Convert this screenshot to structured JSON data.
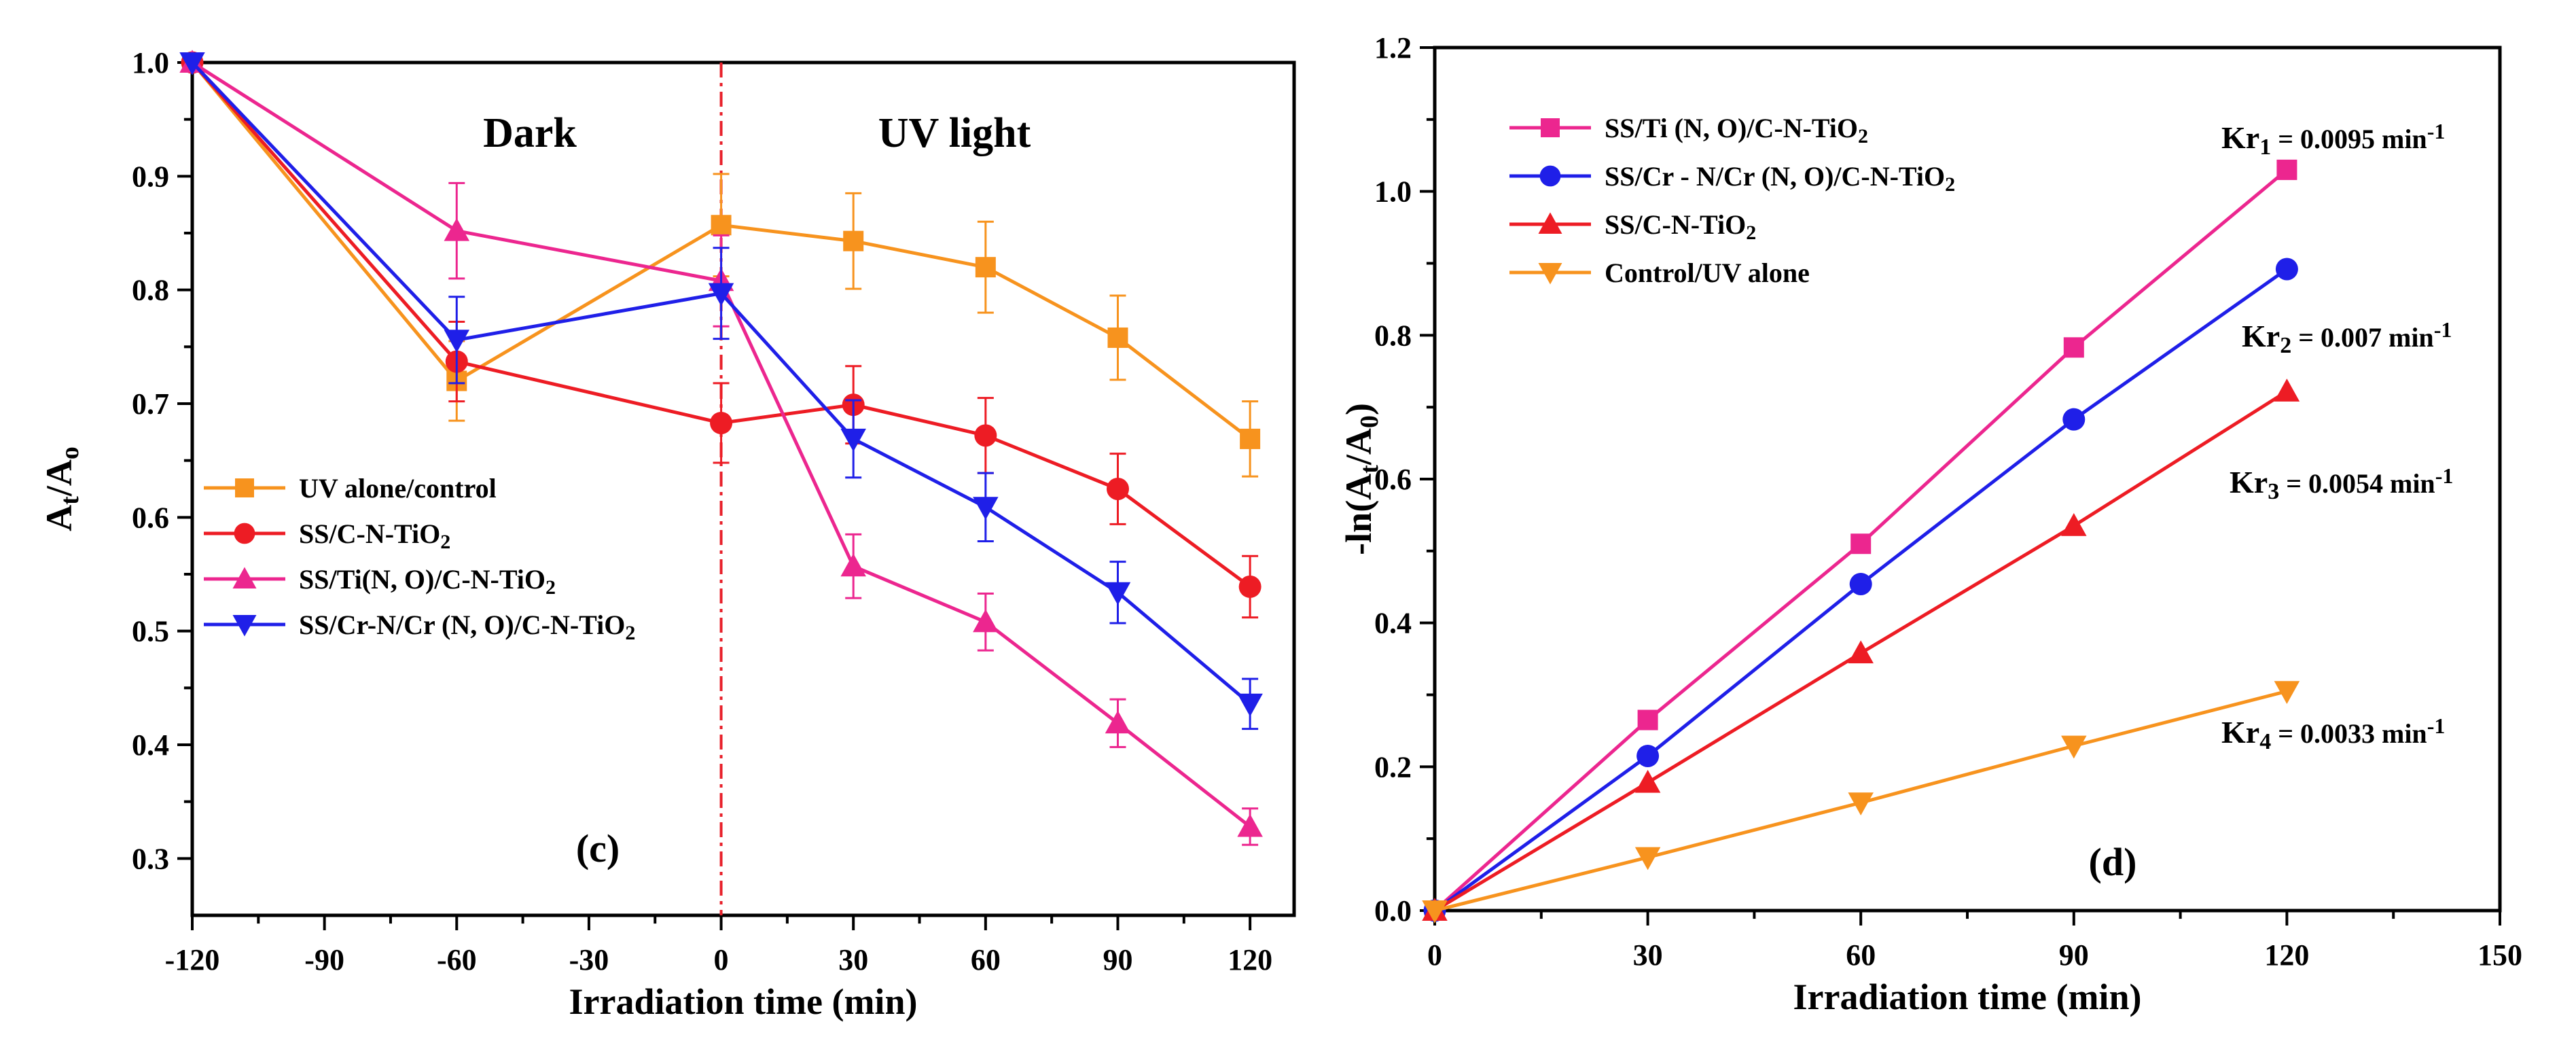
{
  "chart_data": [
    {
      "type": "line",
      "panel_label": "(c)",
      "xlabel": "Irradiation time (min)",
      "ylabel": {
        "main": "A",
        "sub1": "t",
        "slash": "/A",
        "sub2": "o"
      },
      "xlim": [
        -120,
        130
      ],
      "ylim": [
        0.25,
        1.0
      ],
      "xticks": [
        -120,
        -90,
        -60,
        -30,
        0,
        30,
        60,
        90,
        120
      ],
      "yticks": [
        0.3,
        0.4,
        0.5,
        0.6,
        0.7,
        0.8,
        0.9,
        1.0
      ],
      "xtick_labels": [
        "-120",
        "-90",
        "-60",
        "-30",
        "0",
        "30",
        "60",
        "90",
        "120"
      ],
      "ytick_labels": [
        "0.3",
        "0.4",
        "0.5",
        "0.6",
        "0.7",
        "0.8",
        "0.9",
        "1.0"
      ],
      "vertical_line_x": 0,
      "region_labels": [
        "Dark",
        "UV light"
      ],
      "legend": [
        {
          "text": "UV alone/control",
          "series": 0
        },
        {
          "text": "SS/C-N-TiO",
          "sub": "2",
          "series": 1
        },
        {
          "text": "SS/Ti(N, O)/C-N-TiO",
          "sub": "2",
          "series": 2
        },
        {
          "text": "SS/Cr-N/Cr (N, O)/C-N-TiO",
          "sub": "2",
          "series": 3
        }
      ],
      "series": [
        {
          "name": "UV alone/control",
          "color": "#F7931E",
          "marker": "square",
          "x": [
            -120,
            -60,
            0,
            30,
            60,
            90,
            120
          ],
          "y": [
            1.0,
            0.72,
            0.857,
            0.843,
            0.82,
            0.758,
            0.669
          ],
          "err": [
            0.0,
            0.035,
            0.045,
            0.042,
            0.04,
            0.037,
            0.033
          ]
        },
        {
          "name": "SS/C-N-TiO2",
          "color": "#ED1C24",
          "marker": "circle",
          "x": [
            -120,
            -60,
            0,
            30,
            60,
            90,
            120
          ],
          "y": [
            1.0,
            0.737,
            0.683,
            0.699,
            0.672,
            0.625,
            0.539
          ],
          "err": [
            0.0,
            0.035,
            0.035,
            0.034,
            0.033,
            0.031,
            0.027
          ]
        },
        {
          "name": "SS/Ti(N, O)/C-N-TiO2",
          "color": "#EC268F",
          "marker": "triangle-up",
          "x": [
            -120,
            -60,
            0,
            30,
            60,
            90,
            120
          ],
          "y": [
            1.0,
            0.852,
            0.808,
            0.557,
            0.508,
            0.419,
            0.328
          ],
          "err": [
            0.0,
            0.042,
            0.04,
            0.028,
            0.025,
            0.021,
            0.016
          ]
        },
        {
          "name": "SS/Cr-N/Cr (N, O)/C-N-TiO2",
          "color": "#1F1FE8",
          "marker": "triangle-down",
          "x": [
            -120,
            -60,
            0,
            30,
            60,
            90,
            120
          ],
          "y": [
            1.0,
            0.756,
            0.797,
            0.669,
            0.609,
            0.534,
            0.436
          ],
          "err": [
            0.0,
            0.038,
            0.04,
            0.034,
            0.03,
            0.027,
            0.022
          ]
        }
      ]
    },
    {
      "type": "line",
      "panel_label": "(d)",
      "xlabel": "Irradiation time (min)",
      "ylabel": {
        "main": "-ln(A",
        "sub1": "t",
        "slash": "/A",
        "sub2": "0",
        "close": ")"
      },
      "xlim": [
        0,
        150
      ],
      "ylim": [
        0.0,
        1.2
      ],
      "xticks": [
        0,
        30,
        60,
        90,
        120,
        150
      ],
      "yticks": [
        0.0,
        0.2,
        0.4,
        0.6,
        0.8,
        1.0,
        1.2
      ],
      "xtick_labels": [
        "0",
        "30",
        "60",
        "90",
        "120",
        "150"
      ],
      "ytick_labels": [
        "0.0",
        "0.2",
        "0.4",
        "0.6",
        "0.8",
        "1.0",
        "1.2"
      ],
      "legend": [
        {
          "text": "SS/Ti (N, O)/C-N-TiO",
          "sub": "2",
          "series": 0
        },
        {
          "text": "SS/Cr - N/Cr (N, O)/C-N-TiO",
          "sub": "2",
          "series": 1
        },
        {
          "text": "SS/C-N-TiO",
          "sub": "2",
          "series": 2
        },
        {
          "text": "Control/UV alone",
          "series": 3
        }
      ],
      "rate_labels": [
        {
          "name": "Kr",
          "sub": "1",
          "value": " = 0.0095 min",
          "sup": "-1"
        },
        {
          "name": "Kr",
          "sub": "2",
          "value": " = 0.007 min",
          "sup": "-1"
        },
        {
          "name": "Kr",
          "sub": "3",
          "value": " = 0.0054 min",
          "sup": "-1"
        },
        {
          "name": "Kr",
          "sub": "4",
          "value": " = 0.0033 min",
          "sup": "-1"
        }
      ],
      "series": [
        {
          "name": "SS/Ti (N, O)/C-N-TiO2",
          "color": "#EC268F",
          "marker": "square",
          "x": [
            0,
            30,
            60,
            90,
            120
          ],
          "y": [
            0.0,
            0.265,
            0.51,
            0.783,
            1.03
          ]
        },
        {
          "name": "SS/Cr - N/Cr (N, O)/C-N-TiO2",
          "color": "#1F1FE8",
          "marker": "circle",
          "x": [
            0,
            30,
            60,
            90,
            120
          ],
          "y": [
            0.0,
            0.215,
            0.454,
            0.683,
            0.892
          ]
        },
        {
          "name": "SS/C-N-TiO2",
          "color": "#ED1C24",
          "marker": "triangle-up",
          "x": [
            0,
            30,
            60,
            90,
            120
          ],
          "y": [
            0.0,
            0.178,
            0.358,
            0.535,
            0.722
          ]
        },
        {
          "name": "Control/UV alone",
          "color": "#F7931E",
          "marker": "triangle-down",
          "x": [
            0,
            30,
            60,
            90,
            120
          ],
          "y": [
            0.0,
            0.074,
            0.15,
            0.229,
            0.305
          ]
        }
      ]
    }
  ]
}
